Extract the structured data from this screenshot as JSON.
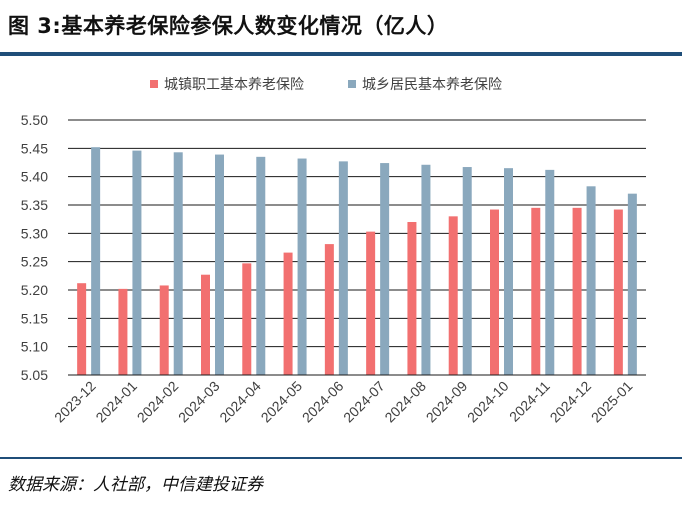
{
  "title": "图 3:基本养老保险参保人数变化情况（亿人）",
  "source": "数据来源：人社部，中信建投证券",
  "chart_data": {
    "type": "bar",
    "categories": [
      "2023-12",
      "2024-01",
      "2024-02",
      "2024-03",
      "2024-04",
      "2024-05",
      "2024-06",
      "2024-07",
      "2024-08",
      "2024-09",
      "2024-10",
      "2024-11",
      "2024-12",
      "2025-01"
    ],
    "series": [
      {
        "name": "城镇职工基本养老保险",
        "color": "#f27070",
        "values": [
          5.212,
          5.202,
          5.208,
          5.227,
          5.247,
          5.266,
          5.281,
          5.303,
          5.32,
          5.33,
          5.342,
          5.345,
          5.345,
          5.342
        ]
      },
      {
        "name": "城乡居民基本养老保险",
        "color": "#8aa8bd",
        "values": [
          5.452,
          5.446,
          5.443,
          5.439,
          5.435,
          5.432,
          5.427,
          5.424,
          5.421,
          5.417,
          5.415,
          5.412,
          5.383,
          5.37
        ]
      }
    ],
    "ylim": [
      5.05,
      5.5
    ],
    "yticks": [
      "5.05",
      "5.10",
      "5.15",
      "5.20",
      "5.25",
      "5.30",
      "5.35",
      "5.40",
      "5.45",
      "5.50"
    ],
    "grid": true,
    "legend": "top"
  }
}
